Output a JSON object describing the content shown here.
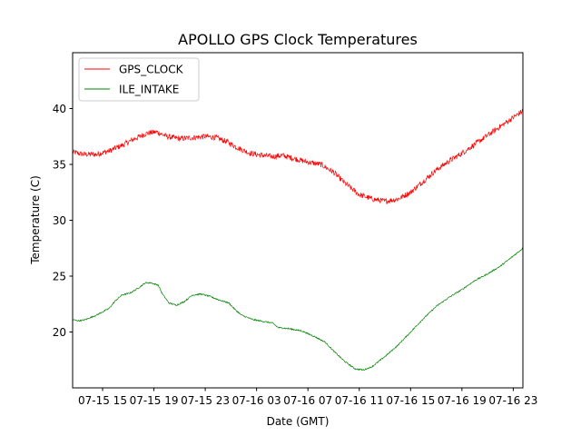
{
  "chart_data": {
    "type": "line",
    "title": "APOLLO GPS Clock Temperatures",
    "xlabel": "Date (GMT)",
    "ylabel": "Temperature (C)",
    "x_unit": "hours (GMT)",
    "x_range": [
      "07-15 12:40",
      "07-16 23:45"
    ],
    "x_ticks": [
      {
        "at": "07-15 15:00",
        "label": "07-15 15"
      },
      {
        "at": "07-15 19:00",
        "label": "07-15 19"
      },
      {
        "at": "07-15 23:00",
        "label": "07-15 23"
      },
      {
        "at": "07-16 03:00",
        "label": "07-16 03"
      },
      {
        "at": "07-16 07:00",
        "label": "07-16 07"
      },
      {
        "at": "07-16 11:00",
        "label": "07-16 11"
      },
      {
        "at": "07-16 15:00",
        "label": "07-16 15"
      },
      {
        "at": "07-16 19:00",
        "label": "07-16 19"
      },
      {
        "at": "07-16 23:00",
        "label": "07-16 23"
      }
    ],
    "y_range": [
      15,
      45
    ],
    "y_ticks": [
      {
        "value": 20,
        "label": "20"
      },
      {
        "value": 25,
        "label": "25"
      },
      {
        "value": 30,
        "label": "30"
      },
      {
        "value": 35,
        "label": "35"
      },
      {
        "value": 40,
        "label": "40"
      }
    ],
    "grid": false,
    "legend_position": "top-left",
    "series": [
      {
        "name": "GPS_CLOCK",
        "color": "#ff0000",
        "noise": 0.25,
        "points": [
          [
            "07-15 12:40",
            36.1
          ],
          [
            "07-15 13:30",
            35.9
          ],
          [
            "07-15 14:30",
            35.9
          ],
          [
            "07-15 15:30",
            36.2
          ],
          [
            "07-15 16:30",
            36.7
          ],
          [
            "07-15 17:30",
            37.3
          ],
          [
            "07-15 18:30",
            37.8
          ],
          [
            "07-15 19:15",
            37.9
          ],
          [
            "07-15 20:00",
            37.5
          ],
          [
            "07-15 21:00",
            37.3
          ],
          [
            "07-15 22:00",
            37.4
          ],
          [
            "07-15 23:00",
            37.5
          ],
          [
            "07-15 23:50",
            37.4
          ],
          [
            "07-16 00:45",
            37.0
          ],
          [
            "07-16 01:30",
            36.5
          ],
          [
            "07-16 02:30",
            36.0
          ],
          [
            "07-16 03:30",
            35.8
          ],
          [
            "07-16 04:15",
            35.7
          ],
          [
            "07-16 05:00",
            35.8
          ],
          [
            "07-16 06:00",
            35.5
          ],
          [
            "07-16 07:00",
            35.2
          ],
          [
            "07-16 08:00",
            35.0
          ],
          [
            "07-16 09:00",
            34.3
          ],
          [
            "07-16 10:00",
            33.2
          ],
          [
            "07-16 11:00",
            32.3
          ],
          [
            "07-16 12:00",
            31.9
          ],
          [
            "07-16 13:00",
            31.7
          ],
          [
            "07-16 14:00",
            31.9
          ],
          [
            "07-16 15:00",
            32.5
          ],
          [
            "07-16 16:00",
            33.5
          ],
          [
            "07-16 17:00",
            34.5
          ],
          [
            "07-16 18:00",
            35.3
          ],
          [
            "07-16 19:00",
            36.0
          ],
          [
            "07-16 20:00",
            36.8
          ],
          [
            "07-16 21:00",
            37.6
          ],
          [
            "07-16 22:00",
            38.4
          ],
          [
            "07-16 23:00",
            39.2
          ],
          [
            "07-16 23:45",
            39.8
          ]
        ]
      },
      {
        "name": "ILE_INTAKE",
        "color": "#008000",
        "noise": 0.06,
        "points": [
          [
            "07-15 12:40",
            21.1
          ],
          [
            "07-15 13:10",
            21.0
          ],
          [
            "07-15 13:40",
            21.1
          ],
          [
            "07-15 14:30",
            21.5
          ],
          [
            "07-15 15:30",
            22.1
          ],
          [
            "07-15 16:00",
            22.8
          ],
          [
            "07-15 16:30",
            23.3
          ],
          [
            "07-15 17:10",
            23.5
          ],
          [
            "07-15 17:45",
            23.9
          ],
          [
            "07-15 18:20",
            24.4
          ],
          [
            "07-15 18:45",
            24.4
          ],
          [
            "07-15 19:20",
            24.2
          ],
          [
            "07-15 19:40",
            23.4
          ],
          [
            "07-15 20:10",
            22.6
          ],
          [
            "07-15 20:45",
            22.4
          ],
          [
            "07-15 21:20",
            22.7
          ],
          [
            "07-15 22:00",
            23.3
          ],
          [
            "07-15 22:40",
            23.4
          ],
          [
            "07-15 23:20",
            23.2
          ],
          [
            "07-16 00:00",
            22.9
          ],
          [
            "07-16 00:50",
            22.6
          ],
          [
            "07-16 01:20",
            22.0
          ],
          [
            "07-16 01:50",
            21.5
          ],
          [
            "07-16 02:45",
            21.1
          ],
          [
            "07-16 03:45",
            20.9
          ],
          [
            "07-16 04:15",
            20.8
          ],
          [
            "07-16 04:40",
            20.4
          ],
          [
            "07-16 05:30",
            20.3
          ],
          [
            "07-16 06:30",
            20.1
          ],
          [
            "07-16 07:30",
            19.6
          ],
          [
            "07-16 08:20",
            19.1
          ],
          [
            "07-16 09:00",
            18.3
          ],
          [
            "07-16 09:50",
            17.4
          ],
          [
            "07-16 10:40",
            16.7
          ],
          [
            "07-16 11:20",
            16.6
          ],
          [
            "07-16 12:00",
            16.9
          ],
          [
            "07-16 13:00",
            17.8
          ],
          [
            "07-16 14:00",
            18.8
          ],
          [
            "07-16 15:00",
            20.0
          ],
          [
            "07-16 16:00",
            21.2
          ],
          [
            "07-16 17:00",
            22.3
          ],
          [
            "07-16 18:00",
            23.1
          ],
          [
            "07-16 19:00",
            23.8
          ],
          [
            "07-16 20:00",
            24.6
          ],
          [
            "07-16 21:00",
            25.2
          ],
          [
            "07-16 22:00",
            25.9
          ],
          [
            "07-16 23:00",
            26.8
          ],
          [
            "07-16 23:45",
            27.5
          ]
        ]
      }
    ]
  }
}
